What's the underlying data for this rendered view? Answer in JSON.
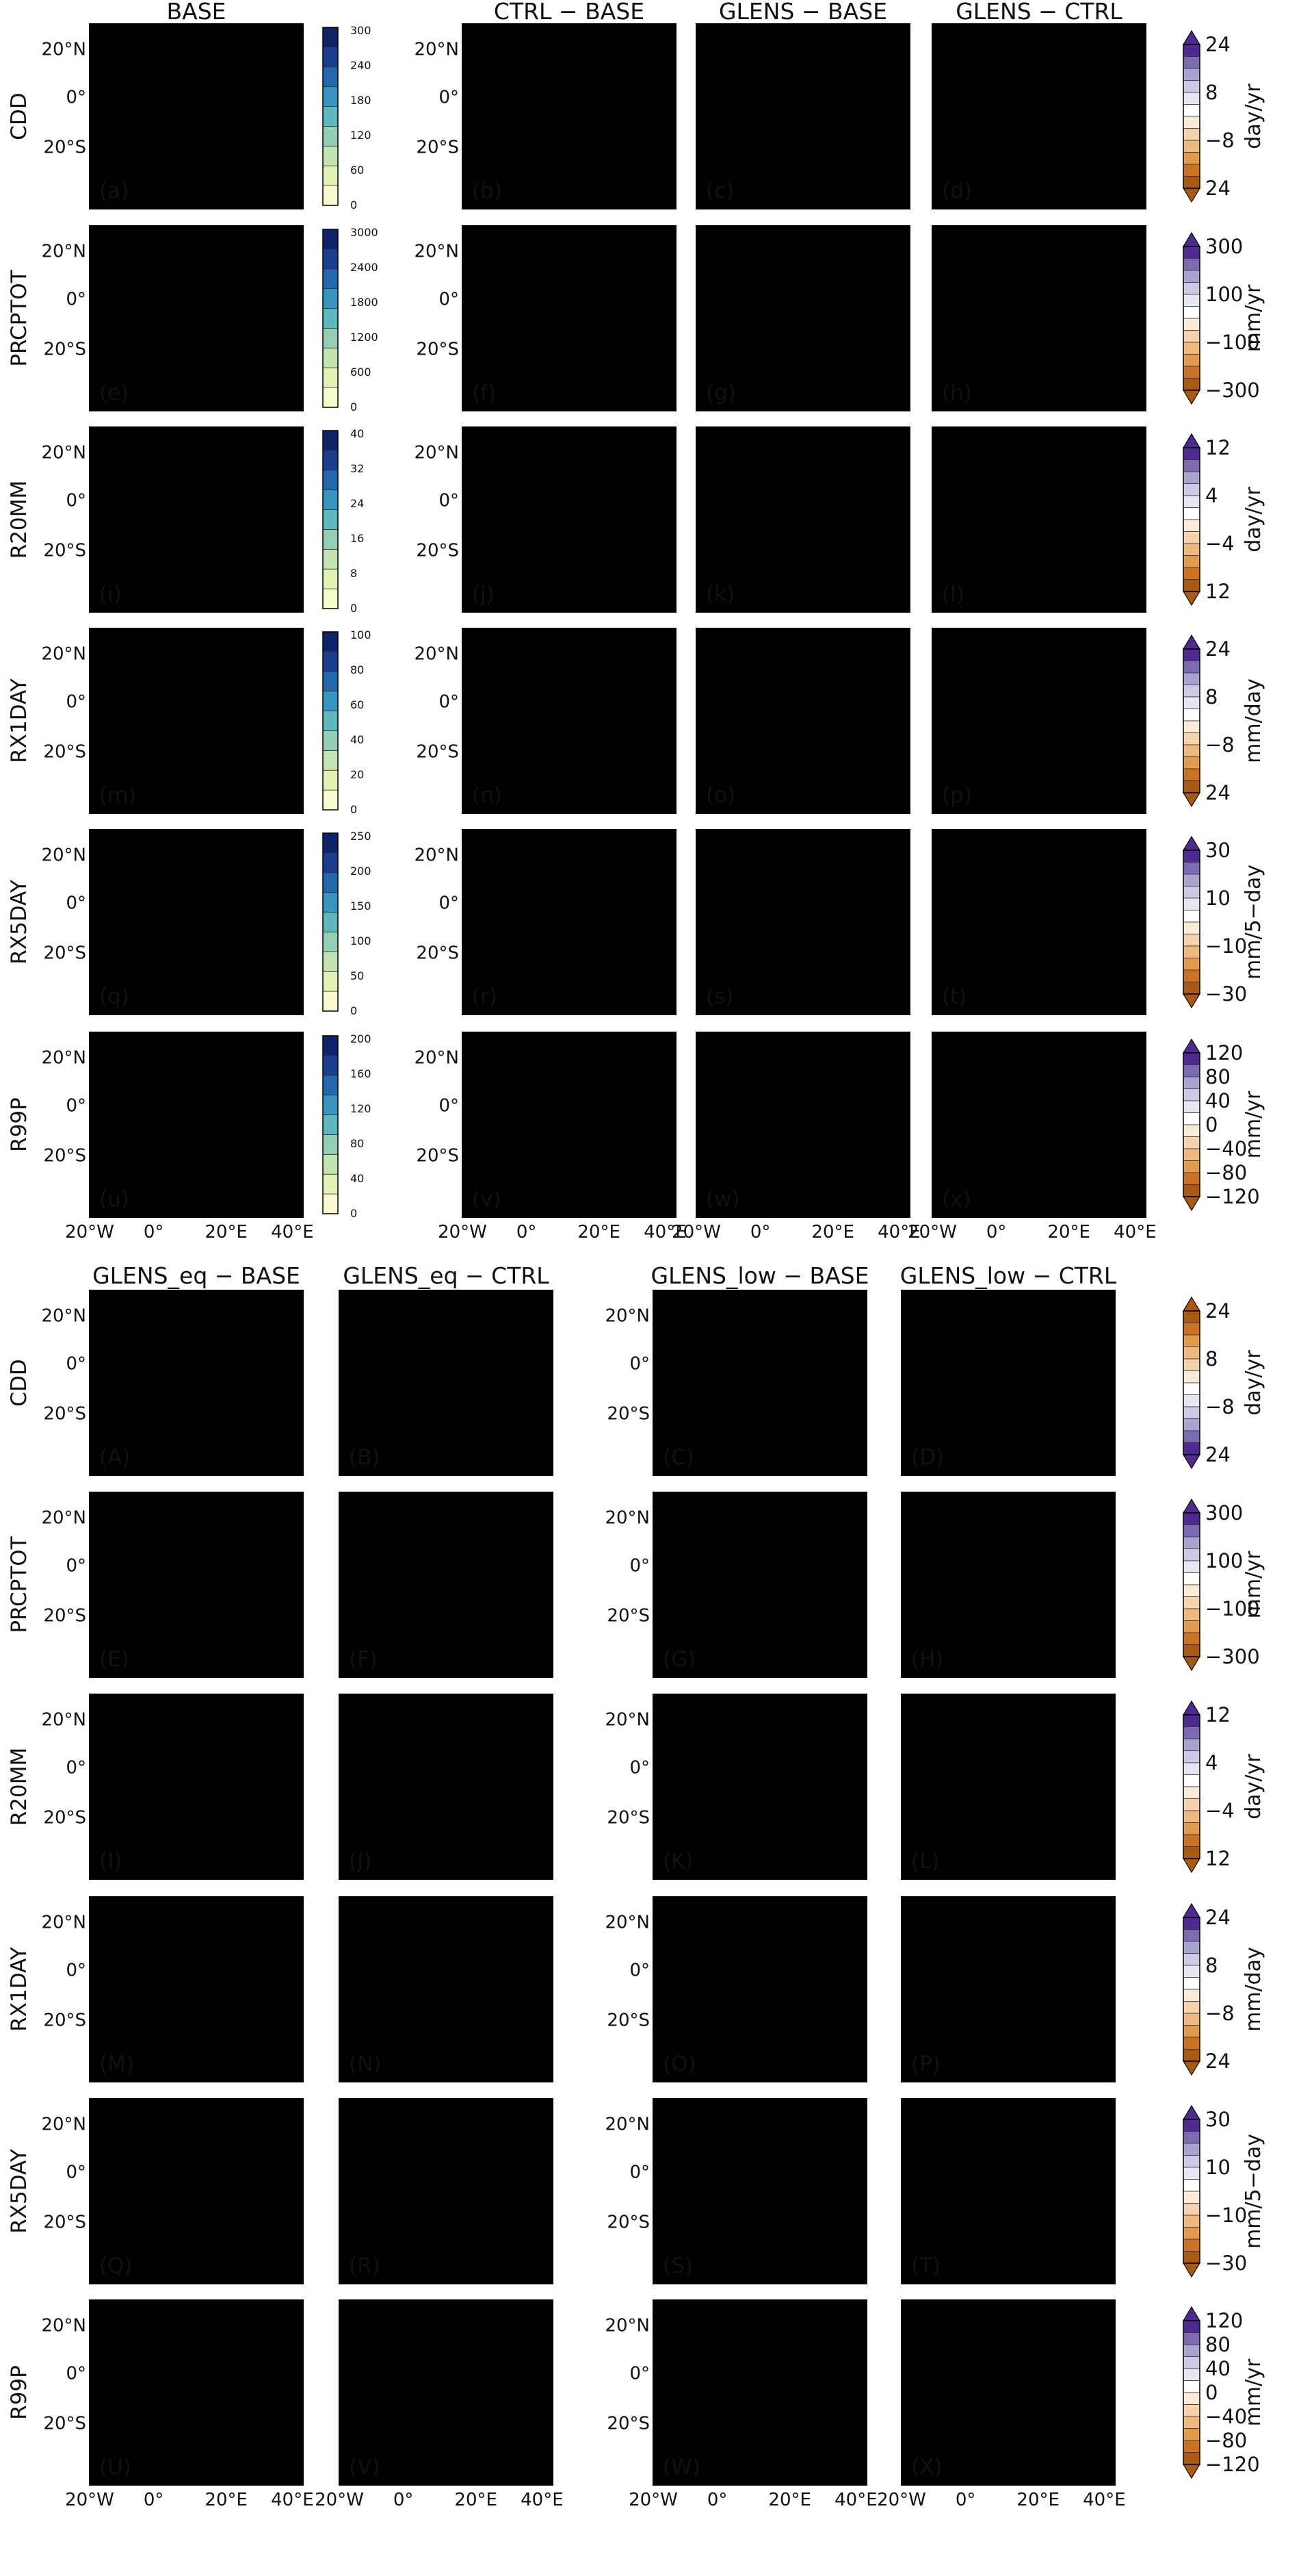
{
  "top_block": {
    "column_titles": [
      "BASE",
      "CTRL − BASE",
      "GLENS − BASE",
      "GLENS − CTRL"
    ],
    "rows": [
      {
        "index": "CDD",
        "labels": [
          "(a)",
          "(b)",
          "(c)",
          "(d)"
        ],
        "fills": [
          "#5aa7bd",
          "#8a82c2",
          "#eeeef5",
          "#d98a3a"
        ],
        "base_ticks": [
          "0",
          "60",
          "120",
          "180",
          "240",
          "300"
        ],
        "diff_ticks": [
          "24",
          "8",
          "−8",
          "24"
        ],
        "unit": "day/yr",
        "diff_palette": "orange-bottom"
      },
      {
        "index": "PRCPTOT",
        "labels": [
          "(e)",
          "(f)",
          "(g)",
          "(h)"
        ],
        "fills": [
          "#a9d6b2",
          "#d9d6ea",
          "#f7e3cf",
          "#e2a163"
        ],
        "base_ticks": [
          "0",
          "600",
          "1200",
          "1800",
          "2400",
          "3000"
        ],
        "diff_ticks": [
          "300",
          "100",
          "−100",
          "−300"
        ],
        "unit": "mm/yr",
        "diff_palette": "purple-top"
      },
      {
        "index": "R20MM",
        "labels": [
          "(i)",
          "(j)",
          "(k)",
          "(l)"
        ],
        "fills": [
          "#e1f0b4",
          "#e6e4f1",
          "#f8ecdd",
          "#edc395"
        ],
        "base_ticks": [
          "0",
          "8",
          "16",
          "24",
          "32",
          "40"
        ],
        "diff_ticks": [
          "12",
          "4",
          "−4",
          "12"
        ],
        "unit": "day/yr",
        "diff_palette": "purple-top"
      },
      {
        "index": "RX1DAY",
        "labels": [
          "(m)",
          "(n)",
          "(o)",
          "(p)"
        ],
        "fills": [
          "#c4e4b2",
          "#e3e1f0",
          "#f8ebdb",
          "#eec497"
        ],
        "base_ticks": [
          "0",
          "20",
          "40",
          "60",
          "80",
          "100"
        ],
        "diff_ticks": [
          "24",
          "8",
          "−8",
          "24"
        ],
        "unit": "mm/day",
        "diff_palette": "purple-top"
      },
      {
        "index": "RX5DAY",
        "labels": [
          "(q)",
          "(r)",
          "(s)",
          "(t)"
        ],
        "fills": [
          "#b9dfb0",
          "#dddaed",
          "#f7e6d2",
          "#e6ac6f"
        ],
        "base_ticks": [
          "0",
          "50",
          "100",
          "150",
          "200",
          "250"
        ],
        "diff_ticks": [
          "30",
          "10",
          "−10",
          "−30"
        ],
        "unit": "mm/5−day",
        "diff_palette": "purple-top"
      },
      {
        "index": "R99P",
        "labels": [
          "(u)",
          "(v)",
          "(w)",
          "(x)"
        ],
        "fills": [
          "#c8e7b2",
          "#dfdcee",
          "#f7e2cc",
          "#e6a96b"
        ],
        "base_ticks": [
          "0",
          "40",
          "80",
          "120",
          "160",
          "200"
        ],
        "diff_ticks": [
          "120",
          "80",
          "40",
          "0",
          "−40",
          "−80",
          "−120"
        ],
        "unit": "mm/yr",
        "diff_palette": "purple-top"
      }
    ]
  },
  "bottom_block": {
    "column_titles": [
      "GLENS_eq − BASE",
      "GLENS_eq − CTRL",
      "GLENS_low − BASE",
      "GLENS_low − CTRL"
    ],
    "rows": [
      {
        "index": "CDD",
        "labels": [
          "(A)",
          "(B)",
          "(C)",
          "(D)"
        ],
        "fills": [
          "#e9b680",
          "#d98a3a",
          "#ebbb86",
          "#d98a3a"
        ],
        "diff_ticks": [
          "24",
          "8",
          "−8",
          "24"
        ],
        "unit": "day/yr",
        "diff_palette": "orange-top"
      },
      {
        "index": "PRCPTOT",
        "labels": [
          "(E)",
          "(F)",
          "(G)",
          "(H)"
        ],
        "fills": [
          "#efc89c",
          "#e09c5b",
          "#efc99e",
          "#e09c5b"
        ],
        "diff_ticks": [
          "300",
          "100",
          "−100",
          "−300"
        ],
        "unit": "mm/yr",
        "diff_palette": "purple-top"
      },
      {
        "index": "R20MM",
        "labels": [
          "(I)",
          "(J)",
          "(K)",
          "(L)"
        ],
        "fills": [
          "#f4d9b9",
          "#ebbb86",
          "#f4dabb",
          "#ebbb86"
        ],
        "diff_ticks": [
          "12",
          "4",
          "−4",
          "12"
        ],
        "unit": "day/yr",
        "diff_palette": "purple-top"
      },
      {
        "index": "RX1DAY",
        "labels": [
          "(M)",
          "(N)",
          "(O)",
          "(P)"
        ],
        "fills": [
          "#f3d6b4",
          "#ecc08f",
          "#f4dab9",
          "#ecc08f"
        ],
        "diff_ticks": [
          "24",
          "8",
          "−8",
          "24"
        ],
        "unit": "mm/day",
        "diff_palette": "purple-top"
      },
      {
        "index": "RX5DAY",
        "labels": [
          "(Q)",
          "(R)",
          "(S)",
          "(T)"
        ],
        "fills": [
          "#f1cfa8",
          "#e3a466",
          "#f2d2ac",
          "#e3a466"
        ],
        "diff_ticks": [
          "30",
          "10",
          "−10",
          "−30"
        ],
        "unit": "mm/5−day",
        "diff_palette": "purple-top"
      },
      {
        "index": "R99P",
        "labels": [
          "(U)",
          "(V)",
          "(W)",
          "(X)"
        ],
        "fills": [
          "#f0cca4",
          "#e3a466",
          "#f1cfa7",
          "#e3a466"
        ],
        "diff_ticks": [
          "120",
          "80",
          "40",
          "0",
          "−40",
          "−80",
          "−120"
        ],
        "unit": "mm/yr",
        "diff_palette": "purple-top"
      }
    ]
  },
  "map_axes": {
    "lat_ticks": [
      "20°N",
      "0°",
      "20°S"
    ],
    "lon_ticks": [
      "20°W",
      "0°",
      "20°E",
      "40°E"
    ],
    "lat_values": [
      20,
      0,
      -20
    ],
    "lon_values": [
      -20,
      0,
      20,
      40
    ]
  },
  "palettes": {
    "base": [
      "#f7fbce",
      "#e2f1b4",
      "#c3e3b0",
      "#94cfb5",
      "#5fb7be",
      "#3795bf",
      "#2468ac",
      "#1b3f8c",
      "#0e2368"
    ],
    "purple_orange": [
      "#4f2a90",
      "#7d6bb2",
      "#a8a3cf",
      "#cbc9e4",
      "#e7e6f2",
      "#ffffff",
      "#fbead6",
      "#f6d2ac",
      "#eeb87e",
      "#e29a4f",
      "#cc7224",
      "#a85a12"
    ]
  }
}
